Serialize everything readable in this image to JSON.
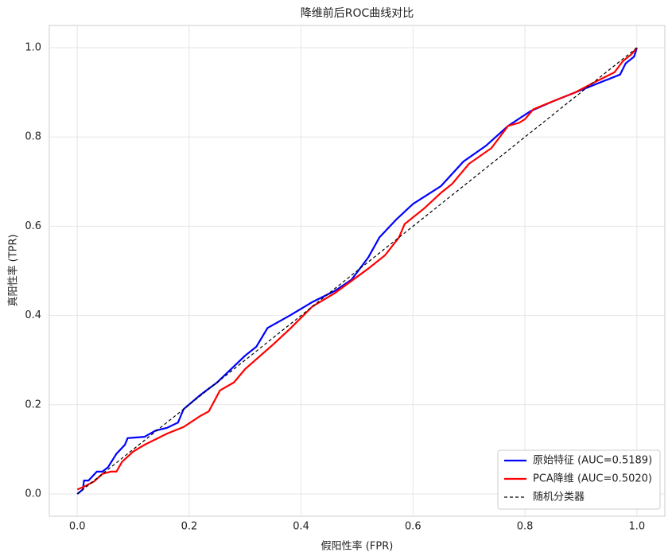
{
  "chart_data": {
    "type": "line",
    "title": "降维前后ROC曲线对比",
    "xlabel": "假阳性率 (FPR)",
    "ylabel": "真阳性率 (TPR)",
    "xlim": [
      -0.05,
      1.05
    ],
    "ylim": [
      -0.05,
      1.05
    ],
    "xticks": [
      {
        "value": 0,
        "label": "0.0"
      },
      0.2,
      0.4,
      0.6,
      0.8,
      {
        "value": 1,
        "label": "1.0"
      }
    ],
    "yticks": [
      {
        "value": 0,
        "label": "0.0"
      },
      0.2,
      0.4,
      0.6,
      0.8,
      {
        "value": 1,
        "label": "1.0"
      }
    ],
    "grid": true,
    "legend": "lower right",
    "series": [
      {
        "name": "原始特征 (AUC=0.5189)",
        "color": "#0000ff",
        "dash": "solid",
        "x": [
          0,
          0.01,
          0.012,
          0.02,
          0.035,
          0.045,
          0.055,
          0.07,
          0.085,
          0.09,
          0.12,
          0.14,
          0.16,
          0.18,
          0.19,
          0.22,
          0.25,
          0.3,
          0.32,
          0.34,
          0.38,
          0.42,
          0.46,
          0.49,
          0.52,
          0.54,
          0.57,
          0.6,
          0.65,
          0.69,
          0.73,
          0.77,
          0.81,
          0.85,
          0.9,
          0.97,
          0.98,
          0.995,
          1.0
        ],
        "values": [
          0,
          0.01,
          0.03,
          0.03,
          0.05,
          0.05,
          0.06,
          0.09,
          0.11,
          0.125,
          0.128,
          0.142,
          0.148,
          0.16,
          0.19,
          0.222,
          0.25,
          0.31,
          0.33,
          0.372,
          0.4,
          0.43,
          0.455,
          0.48,
          0.53,
          0.575,
          0.615,
          0.65,
          0.69,
          0.745,
          0.78,
          0.825,
          0.858,
          0.88,
          0.905,
          0.94,
          0.965,
          0.98,
          1.0
        ]
      },
      {
        "name": "PCA降维 (AUC=0.5020)",
        "color": "#ff0000",
        "dash": "solid",
        "x": [
          0,
          0.01,
          0.03,
          0.045,
          0.06,
          0.07,
          0.08,
          0.1,
          0.12,
          0.16,
          0.19,
          0.22,
          0.235,
          0.255,
          0.28,
          0.3,
          0.35,
          0.38,
          0.42,
          0.46,
          0.52,
          0.55,
          0.575,
          0.585,
          0.62,
          0.65,
          0.67,
          0.7,
          0.74,
          0.77,
          0.79,
          0.8,
          0.815,
          0.84,
          0.89,
          0.92,
          0.96,
          0.975,
          0.99,
          1.0
        ],
        "values": [
          0.01,
          0.015,
          0.028,
          0.045,
          0.05,
          0.05,
          0.072,
          0.095,
          0.11,
          0.135,
          0.15,
          0.175,
          0.185,
          0.232,
          0.25,
          0.28,
          0.335,
          0.37,
          0.42,
          0.45,
          0.505,
          0.535,
          0.575,
          0.605,
          0.64,
          0.675,
          0.695,
          0.74,
          0.775,
          0.825,
          0.832,
          0.84,
          0.862,
          0.875,
          0.9,
          0.92,
          0.945,
          0.97,
          0.985,
          1.0
        ]
      },
      {
        "name": "随机分类器",
        "color": "#000000",
        "dash": "dashed",
        "x": [
          0,
          1
        ],
        "values": [
          0,
          1
        ]
      }
    ]
  }
}
